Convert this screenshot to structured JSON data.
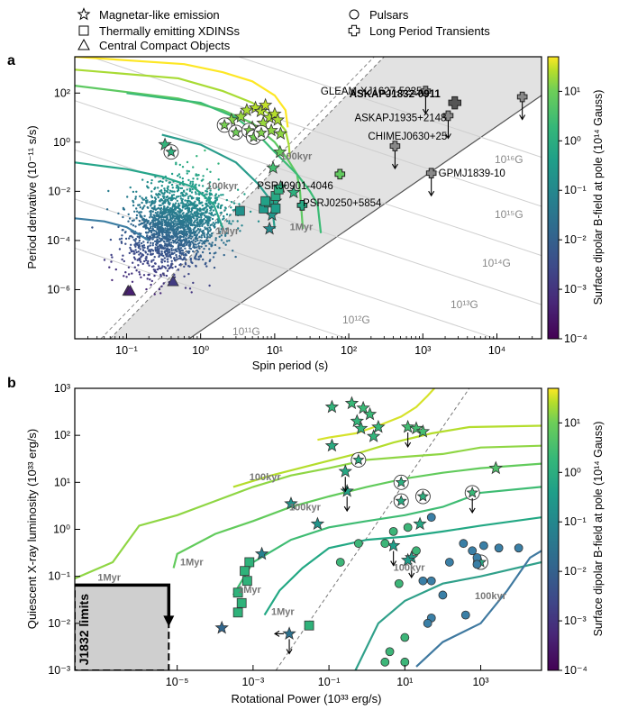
{
  "figure": {
    "legend": [
      {
        "marker": "star",
        "label": "Magnetar-like emission"
      },
      {
        "marker": "square",
        "label": "Thermally emitting XDINSs"
      },
      {
        "marker": "triangle",
        "label": "Central Compact Objects"
      },
      {
        "marker": "circle",
        "label": "Pulsars"
      },
      {
        "marker": "xcross",
        "label": "Long Period Transients"
      }
    ]
  },
  "chart_data": [
    {
      "panel_label": "a",
      "type": "scatter",
      "xlabel": "Spin period (s)",
      "ylabel": "Period derivative (10⁻¹¹ s/s)",
      "xscale": "log",
      "yscale": "log",
      "xlim": [
        0.02,
        40000
      ],
      "ylim": [
        1e-08,
        3000
      ],
      "xticks": [
        {
          "v": 0.1,
          "label": "10⁻¹"
        },
        {
          "v": 1,
          "label": "10⁰"
        },
        {
          "v": 10,
          "label": "10¹"
        },
        {
          "v": 100,
          "label": "10²"
        },
        {
          "v": 1000,
          "label": "10³"
        },
        {
          "v": 10000,
          "label": "10⁴"
        }
      ],
      "yticks": [
        {
          "v": 1e-06,
          "label": "10⁻⁶"
        },
        {
          "v": 0.0001,
          "label": "10⁻⁴"
        },
        {
          "v": 0.01,
          "label": "10⁻²"
        },
        {
          "v": 1,
          "label": "10⁰"
        },
        {
          "v": 100,
          "label": "10²"
        }
      ],
      "colorbar": {
        "label": "Surface dipolar B-field at pole (10¹⁴ Gauss)",
        "colormap": "viridis",
        "range": [
          0.0001,
          50
        ],
        "ticks": [
          {
            "v": 0.0001,
            "label": "10⁻⁴"
          },
          {
            "v": 0.001,
            "label": "10⁻³"
          },
          {
            "v": 0.01,
            "label": "10⁻²"
          },
          {
            "v": 0.1,
            "label": "10⁻¹"
          },
          {
            "v": 1,
            "label": "10⁰"
          },
          {
            "v": 10,
            "label": "10¹"
          }
        ]
      },
      "bfield_lines": [
        {
          "label": "10¹¹G",
          "B": 100000000000.0
        },
        {
          "label": "10¹²G",
          "B": 1000000000000.0
        },
        {
          "label": "10¹³G",
          "B": 10000000000000.0
        },
        {
          "label": "10¹⁴G",
          "B": 100000000000000.0
        },
        {
          "label": "10¹⁵G",
          "B": 1000000000000000.0
        },
        {
          "label": "10¹⁶G",
          "B": 1e+16
        }
      ],
      "annotations": [
        {
          "text": "100kyr",
          "x": 1.2,
          "y": 0.012
        },
        {
          "text": "100kyr",
          "x": 12,
          "y": 0.2
        },
        {
          "text": "1Myr",
          "x": 1.6,
          "y": 0.00018
        },
        {
          "text": "1Myr",
          "x": 16,
          "y": 0.00026
        },
        {
          "text": "PSRJ0901-4046",
          "x": 5.8,
          "y": 0.012
        },
        {
          "text": "PSRJ0250+5854",
          "x": 24,
          "y": 0.0025
        }
      ],
      "series": [
        {
          "name": "Magnetar-like emission",
          "marker": "star",
          "points": [
            [
              4.2,
              20
            ],
            [
              5.5,
              25
            ],
            [
              6.5,
              18
            ],
            [
              7.5,
              32
            ],
            [
              8.5,
              10
            ],
            [
              10,
              14
            ],
            [
              11,
              8
            ],
            [
              5,
              4
            ],
            [
              9,
              3
            ],
            [
              6,
              2
            ],
            [
              12,
              2.2
            ],
            [
              7,
              6
            ],
            [
              2.6,
              8
            ],
            [
              3.5,
              11
            ],
            [
              0.33,
              0.8
            ],
            [
              11.8,
              0.4
            ],
            [
              9.5,
              0.09
            ],
            [
              12,
              0.015
            ],
            [
              18,
              0.009
            ],
            [
              10.2,
              0.004
            ],
            [
              9.2,
              0.0011
            ],
            [
              8.5,
              0.0003
            ]
          ]
        },
        {
          "name": "Magnetar-like emission (pulsar emission)",
          "marker": "circle-star",
          "points": [
            [
              2.1,
              5
            ],
            [
              3,
              2.5
            ],
            [
              4.5,
              3
            ],
            [
              5.2,
              1.6
            ],
            [
              6.6,
              2.4
            ],
            [
              0.4,
              0.4
            ]
          ]
        },
        {
          "name": "Thermally emitting XDINSs",
          "marker": "square",
          "points": [
            [
              3.4,
              0.0016
            ],
            [
              7.1,
              0.002
            ],
            [
              8.4,
              0.0035
            ],
            [
              10.3,
              0.0065
            ],
            [
              11.3,
              0.012
            ],
            [
              10.3,
              0.002
            ],
            [
              7.5,
              0.004
            ]
          ]
        },
        {
          "name": "Central Compact Objects",
          "marker": "triangle",
          "points": [
            [
              0.105,
              9e-07
            ],
            [
              0.112,
              9e-07
            ],
            [
              0.424,
              2.2e-06
            ]
          ]
        },
        {
          "name": "Long Period Transients",
          "marker": "xcross",
          "points": [
            {
              "x": 1091,
              "y": 120,
              "label": "GLEAM-XJ1627-5235",
              "upper_limit": true
            },
            {
              "x": 2700,
              "y": 40,
              "label": "ASKAPJ1832-0911",
              "bold": true
            },
            {
              "x": 2200,
              "y": 12,
              "label": "ASKAPJ1935+2148",
              "upper_limit": true
            },
            {
              "x": 421,
              "y": 0.7,
              "label": "CHIMEJ0630+25",
              "upper_limit": true
            },
            {
              "x": 1300,
              "y": 0.055,
              "label": "GPMJ1839-10",
              "upper_limit": true
            },
            {
              "x": 22000,
              "y": 70,
              "upper_limit": true
            },
            {
              "x": 76,
              "y": 0.05
            },
            {
              "x": 23.5,
              "y": 0.0027
            }
          ]
        },
        {
          "name": "Pulsars",
          "marker": "dot-cloud",
          "note": "field radio pulsars, ~0.03 s to ~15 s"
        }
      ]
    },
    {
      "panel_label": "b",
      "type": "scatter",
      "xlabel": "Rotational Power (10³³ erg/s)",
      "ylabel": "Quiescent X-ray luminosity (10³³ erg/s)",
      "xscale": "log",
      "yscale": "log",
      "xlim": [
        2e-08,
        40000
      ],
      "ylim": [
        0.001,
        1000
      ],
      "xticks": [
        {
          "v": 1e-05,
          "label": "10⁻⁵"
        },
        {
          "v": 0.001,
          "label": "10⁻³"
        },
        {
          "v": 0.1,
          "label": "10⁻¹"
        },
        {
          "v": 10,
          "label": "10¹"
        },
        {
          "v": 1000,
          "label": "10³"
        }
      ],
      "yticks": [
        {
          "v": 0.001,
          "label": "10⁻³"
        },
        {
          "v": 0.01,
          "label": "10⁻²"
        },
        {
          "v": 0.1,
          "label": "10⁻¹"
        },
        {
          "v": 1,
          "label": "10⁰"
        },
        {
          "v": 10,
          "label": "10¹"
        },
        {
          "v": 100,
          "label": "10²"
        },
        {
          "v": 1000,
          "label": "10³"
        }
      ],
      "colorbar": {
        "label": "Surface dipolar B-field at pole (10¹⁴ Gauss)",
        "colormap": "viridis",
        "range": [
          0.0001,
          50
        ],
        "ticks": [
          {
            "v": 0.0001,
            "label": "10⁻⁴"
          },
          {
            "v": 0.001,
            "label": "10⁻³"
          },
          {
            "v": 0.01,
            "label": "10⁻²"
          },
          {
            "v": 0.1,
            "label": "10⁻¹"
          },
          {
            "v": 1,
            "label": "10⁰"
          },
          {
            "v": 10,
            "label": "10¹"
          }
        ]
      },
      "limit_box": {
        "label": "J1832 limits",
        "x_max": 6e-06,
        "y_max": 0.065
      },
      "annotations": [
        {
          "text": "100kyr",
          "x": 0.0008,
          "y": 11
        },
        {
          "text": "100kyr",
          "x": 0.009,
          "y": 2.5
        },
        {
          "text": "100kyr",
          "x": 5,
          "y": 0.13
        },
        {
          "text": "100kyr",
          "x": 700,
          "y": 0.033
        },
        {
          "text": "1Myr",
          "x": 8e-08,
          "y": 0.08
        },
        {
          "text": "1Myr",
          "x": 1.2e-05,
          "y": 0.17
        },
        {
          "text": "1Myr",
          "x": 0.0004,
          "y": 0.045
        },
        {
          "text": "1Myr",
          "x": 0.003,
          "y": 0.015
        }
      ],
      "series": [
        {
          "name": "Magnetar-like emission",
          "marker": "star",
          "points": [
            [
              0.12,
              400
            ],
            [
              0.4,
              480
            ],
            [
              0.55,
              200
            ],
            [
              0.7,
              140
            ],
            [
              0.8,
              380
            ],
            [
              1.2,
              280
            ],
            [
              1.5,
              95
            ],
            [
              2,
              150
            ],
            [
              12,
              150
            ],
            [
              20,
              140
            ],
            [
              30,
              120
            ],
            [
              0.12,
              60
            ],
            [
              0.27,
              17
            ],
            [
              0.3,
              6.5
            ],
            [
              0.05,
              1.3
            ],
            [
              0.01,
              3.5
            ],
            [
              0.0017,
              0.3
            ],
            [
              0.00015,
              0.008
            ],
            [
              2500,
              20
            ],
            [
              25,
              1.3
            ],
            [
              15,
              0.25
            ],
            [
              12,
              0.22
            ],
            [
              5,
              0.45
            ],
            [
              0.009,
              0.006
            ]
          ]
        },
        {
          "name": "Magnetar-like emission (pulsar emission)",
          "marker": "circle-star",
          "points": [
            [
              0.6,
              30
            ],
            [
              8,
              10
            ],
            [
              8,
              4
            ],
            [
              30,
              5
            ],
            [
              600,
              6
            ],
            [
              1000,
              0.2
            ]
          ]
        },
        {
          "name": "Thermally emitting XDINSs",
          "marker": "square",
          "points": [
            [
              0.0008,
              0.2
            ],
            [
              0.0006,
              0.13
            ],
            [
              0.0007,
              0.08
            ],
            [
              0.0004,
              0.045
            ],
            [
              0.0005,
              0.027
            ],
            [
              0.0004,
              0.017
            ],
            [
              0.03,
              0.009
            ]
          ]
        },
        {
          "name": "Pulsars",
          "marker": "circle",
          "points": [
            [
              0.2,
              0.2
            ],
            [
              0.6,
              0.5
            ],
            [
              3,
              0.5
            ],
            [
              5,
              0.9
            ],
            [
              12,
              1.1
            ],
            [
              50,
              1.8
            ],
            [
              20,
              0.35
            ],
            [
              7,
              0.07
            ],
            [
              50,
              0.08
            ],
            [
              150,
              0.2
            ],
            [
              350,
              0.5
            ],
            [
              800,
              0.25
            ],
            [
              600,
              0.35
            ],
            [
              1200,
              0.45
            ],
            [
              3000,
              0.4
            ],
            [
              10000,
              0.4
            ],
            [
              800,
              0.18
            ],
            [
              30,
              0.08
            ],
            [
              100,
              0.04
            ],
            [
              400,
              0.015
            ],
            [
              50,
              0.013
            ],
            [
              4,
              0.0025
            ],
            [
              3,
              0.0015
            ],
            [
              10,
              0.0015
            ],
            [
              40,
              0.01
            ],
            [
              10,
              0.005
            ]
          ]
        }
      ]
    }
  ]
}
